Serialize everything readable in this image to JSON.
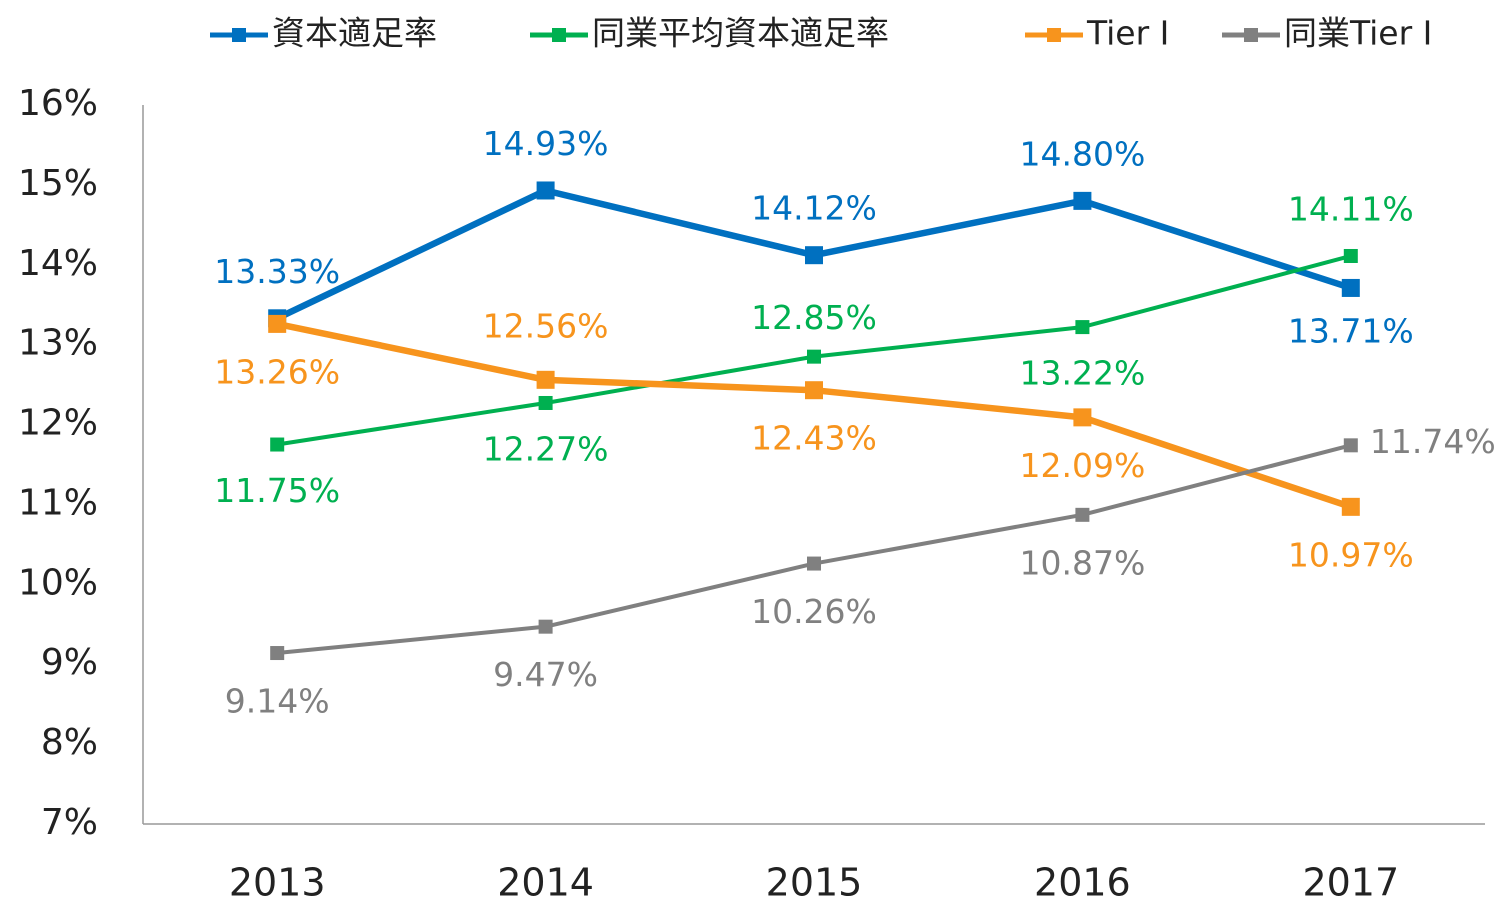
{
  "chart_data": {
    "type": "line",
    "categories": [
      "2013",
      "2014",
      "2015",
      "2016",
      "2017"
    ],
    "series": [
      {
        "name": "資本適足率",
        "color": "#0070c0",
        "values": [
          13.33,
          14.93,
          14.12,
          14.8,
          13.71
        ],
        "value_labels": [
          "13.33%",
          "14.93%",
          "14.12%",
          "14.80%",
          "13.71%"
        ]
      },
      {
        "name": "同業平均資本適足率",
        "color": "#00b050",
        "values": [
          11.75,
          12.27,
          12.85,
          13.22,
          14.11
        ],
        "value_labels": [
          "11.75%",
          "12.27%",
          "12.85%",
          "13.22%",
          "14.11%"
        ]
      },
      {
        "name": "Tier I",
        "color": "#f7941d",
        "values": [
          13.26,
          12.56,
          12.43,
          12.09,
          10.97
        ],
        "value_labels": [
          "13.26%",
          "12.56%",
          "12.43%",
          "12.09%",
          "10.97%"
        ]
      },
      {
        "name": "同業Tier I",
        "color": "#808080",
        "values": [
          9.14,
          9.47,
          10.26,
          10.87,
          11.74
        ],
        "value_labels": [
          "9.14%",
          "9.47%",
          "10.26%",
          "10.87%",
          "11.74%"
        ]
      }
    ],
    "ylim": [
      7,
      16
    ],
    "yticks": [
      {
        "value": 7,
        "label": "7%"
      },
      {
        "value": 8,
        "label": "8%"
      },
      {
        "value": 9,
        "label": "9%"
      },
      {
        "value": 10,
        "label": "10%"
      },
      {
        "value": 11,
        "label": "11%"
      },
      {
        "value": 12,
        "label": "12%"
      },
      {
        "value": 13,
        "label": "13%"
      },
      {
        "value": 14,
        "label": "14%"
      },
      {
        "value": 15,
        "label": "15%"
      },
      {
        "value": 16,
        "label": "16%"
      }
    ],
    "grid": false,
    "legend": "top"
  }
}
